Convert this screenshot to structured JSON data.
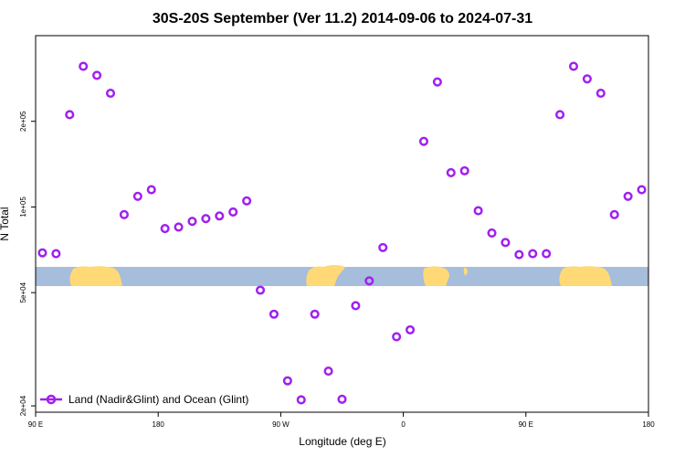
{
  "chart_data": {
    "type": "scatter",
    "title": "30S-20S September (Ver 11.2)   2014-09-06 to 2024-07-31",
    "xlabel": "Longitude (deg E)",
    "ylabel": "N Total",
    "y_scale": "log",
    "xlim": [
      90,
      540
    ],
    "ylim": [
      19000,
      400000
    ],
    "x_ticks": [
      {
        "value": 90,
        "label": "90 E"
      },
      {
        "value": 180,
        "label": "180"
      },
      {
        "value": 270,
        "label": "90 W"
      },
      {
        "value": 360,
        "label": "0"
      },
      {
        "value": 450,
        "label": "90 E"
      },
      {
        "value": 540,
        "label": "180"
      }
    ],
    "y_ticks": [
      {
        "value": 20000,
        "label": "2e+04"
      },
      {
        "value": 50000,
        "label": "5e+04"
      },
      {
        "value": 100000,
        "label": "1e+05"
      },
      {
        "value": 200000,
        "label": "2e+05"
      }
    ],
    "legend": {
      "position": "bottom-left",
      "label": "Land (Nadir&Glint) and Ocean (Glint)"
    },
    "marker_color": "#A020F0",
    "map_strip": {
      "ocean_color": "#A6BDDB",
      "land_color": "#FED976"
    },
    "series": [
      {
        "name": "Land (Nadir&Glint) and Ocean (Glint)",
        "points": [
          [
            95,
            69000
          ],
          [
            105,
            68500
          ],
          [
            115,
            211000
          ],
          [
            125,
            312000
          ],
          [
            135,
            290000
          ],
          [
            145,
            251000
          ],
          [
            155,
            94000
          ],
          [
            165,
            109000
          ],
          [
            175,
            115000
          ],
          [
            185,
            84000
          ],
          [
            195,
            85000
          ],
          [
            205,
            89000
          ],
          [
            215,
            91000
          ],
          [
            225,
            93000
          ],
          [
            235,
            96000
          ],
          [
            245,
            105000
          ],
          [
            255,
            51000
          ],
          [
            265,
            42000
          ],
          [
            275,
            24500
          ],
          [
            285,
            21000
          ],
          [
            295,
            42000
          ],
          [
            305,
            26500
          ],
          [
            315,
            21100
          ],
          [
            325,
            45000
          ],
          [
            335,
            55000
          ],
          [
            345,
            72000
          ],
          [
            355,
            35000
          ],
          [
            365,
            37000
          ],
          [
            375,
            170000
          ],
          [
            385,
            275000
          ],
          [
            395,
            132000
          ],
          [
            405,
            134000
          ],
          [
            415,
            97000
          ],
          [
            425,
            81000
          ],
          [
            435,
            75000
          ],
          [
            445,
            68000
          ],
          [
            455,
            68500
          ],
          [
            465,
            68500
          ],
          [
            475,
            211000
          ],
          [
            485,
            312000
          ],
          [
            495,
            282000
          ],
          [
            505,
            251000
          ],
          [
            515,
            94000
          ],
          [
            525,
            109000
          ],
          [
            535,
            115000
          ]
        ]
      }
    ]
  }
}
